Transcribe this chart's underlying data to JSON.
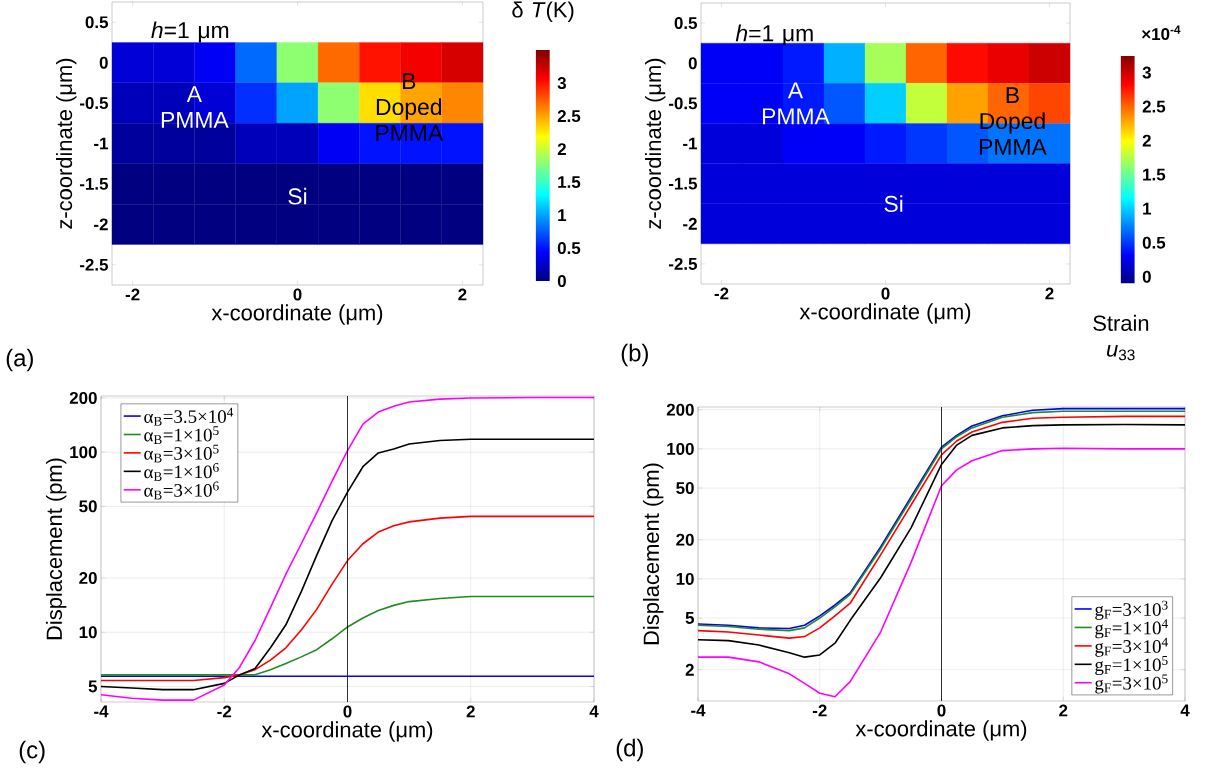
{
  "chart_data": [
    {
      "type": "heatmap",
      "xlabel": "x-coordinate (μm)",
      "ylabel": "z-coordinate (μm)",
      "clabel": "δ *T*(K)",
      "categories": [
        "-2",
        null,
        null,
        null,
        "0",
        null,
        null,
        null,
        "2"
      ],
      "y_categories": [
        "0.5",
        "0",
        "-0.5",
        "-1",
        "-1.5",
        "-2",
        "-2.5"
      ],
      "clim": [
        0,
        3.5
      ],
      "cticks": [
        0,
        0.5,
        1,
        1.5,
        2,
        2.5,
        3
      ],
      "cells": [
        [
          null,
          null,
          null,
          null,
          null,
          null,
          null,
          null,
          null
        ],
        [
          0.3,
          0.3,
          0.4,
          0.8,
          1.8,
          2.7,
          3.0,
          3.1,
          3.2
        ],
        [
          0.2,
          0.2,
          0.3,
          0.6,
          1.0,
          1.8,
          2.3,
          2.5,
          2.6
        ],
        [
          0.1,
          0.1,
          0.1,
          0.2,
          0.2,
          0.4,
          0.5,
          0.5,
          0.5
        ],
        [
          0,
          0,
          0,
          0,
          0,
          0,
          0,
          0,
          0
        ],
        [
          0,
          0,
          0,
          0,
          0,
          0,
          0,
          0,
          0
        ],
        [
          null,
          null,
          null,
          null,
          null,
          null,
          null,
          null,
          null
        ]
      ],
      "annotations": [
        "(a)",
        "*h*=1 μm",
        "A PMMA",
        "B Doped PMMA",
        "Si"
      ]
    },
    {
      "type": "heatmap",
      "xlabel": "x-coordinate (μm)",
      "ylabel": "z-coordinate (μm)",
      "clabel": "Strain *u*$_{33}$",
      "categories": [
        "-2",
        null,
        null,
        null,
        "0",
        null,
        null,
        null,
        "2"
      ],
      "y_categories": [
        "0.5",
        "0",
        "-0.5",
        "-1",
        "-1.5",
        "-2",
        "-2.5"
      ],
      "clim": [
        -0.1,
        3.25
      ],
      "cticks": [
        0,
        0.5,
        1,
        1.5,
        2,
        2.5,
        3
      ],
      "cells": [
        [
          null,
          null,
          null,
          null,
          null,
          null,
          null,
          null,
          null
        ],
        [
          0.3,
          0.3,
          0.4,
          0.9,
          1.7,
          2.5,
          2.8,
          2.9,
          3.0
        ],
        [
          0.3,
          0.3,
          0.4,
          0.6,
          1.0,
          1.8,
          2.3,
          2.5,
          2.6
        ],
        [
          0.2,
          0.2,
          0.3,
          0.3,
          0.4,
          0.5,
          0.6,
          0.7,
          0.7
        ],
        [
          0.2,
          0.2,
          0.2,
          0.2,
          0.2,
          0.2,
          0.2,
          0.2,
          0.2
        ],
        [
          0.2,
          0.2,
          0.2,
          0.2,
          0.2,
          0.2,
          0.2,
          0.2,
          0.2
        ],
        [
          null,
          null,
          null,
          null,
          null,
          null,
          null,
          null,
          null
        ]
      ],
      "annotations": [
        "(b)",
        "×10$^{-4}$",
        "*h*=1 μm",
        "A PMMA",
        "B Doped PMMA",
        "Si"
      ]
    },
    {
      "type": "line",
      "xlabel": "x-coordinate (μm)",
      "ylabel": "Displacement (pm)",
      "log": "y",
      "grid": true,
      "legend": "top left",
      "xlim": [
        -4,
        4
      ],
      "xticks": [
        -4,
        -2,
        0,
        2,
        4
      ],
      "ylim": [
        4.1,
        205
      ],
      "yticks": [
        5,
        10,
        20,
        50,
        100,
        200
      ],
      "x": [
        -4,
        -3.5,
        -3,
        -2.5,
        -2,
        -1.75,
        -1.5,
        -1.25,
        -1,
        -0.75,
        -0.5,
        -0.25,
        0,
        0.25,
        0.5,
        0.75,
        1,
        1.5,
        2,
        3,
        4
      ],
      "series": [
        {
          "name": "α$_{B}$=3.5×10$^{4}$",
          "color": "#0000ff",
          "values": [
            5.7,
            5.7,
            5.7,
            5.7,
            5.7,
            5.7,
            5.7,
            5.7,
            5.7,
            5.7,
            5.7,
            5.7,
            5.7,
            5.7,
            5.7,
            5.7,
            5.7,
            5.7,
            5.7,
            5.7,
            5.7
          ]
        },
        {
          "name": "α$_{B}$=1×10$^{5}$",
          "color": "#228b22",
          "values": [
            5.8,
            5.8,
            5.8,
            5.8,
            5.8,
            5.8,
            5.8,
            6.2,
            6.7,
            7.3,
            8.0,
            9.2,
            10.7,
            12.0,
            13.2,
            14.1,
            14.8,
            15.4,
            15.8,
            15.8,
            15.8
          ]
        },
        {
          "name": "α$_{B}$=3×10$^{5}$",
          "color": "#ff0000",
          "values": [
            5.4,
            5.4,
            5.4,
            5.4,
            5.6,
            5.8,
            6.2,
            7.0,
            8.2,
            10.3,
            13.4,
            18.5,
            25,
            31,
            36,
            39,
            41,
            43,
            44,
            44,
            44
          ]
        },
        {
          "name": "α$_{B}$=1×10$^{6}$",
          "color": "#000000",
          "values": [
            5.0,
            4.9,
            4.8,
            4.8,
            5.2,
            5.8,
            6.3,
            8.2,
            11.0,
            16.8,
            26.7,
            41.7,
            60,
            83,
            99,
            104,
            111,
            116,
            118,
            118,
            118
          ]
        },
        {
          "name": "α$_{B}$=3×10$^{6}$",
          "color": "#ff00ff",
          "values": [
            4.5,
            4.3,
            4.2,
            4.2,
            5.1,
            6.4,
            9.0,
            13.7,
            21,
            31,
            46,
            69,
            102,
            143,
            167,
            180,
            190,
            197,
            200,
            201,
            201
          ]
        }
      ],
      "ref_lines": [
        {
          "axis": "x",
          "value": 0,
          "color": "#000000"
        }
      ],
      "annotations": [
        "(c)"
      ]
    },
    {
      "type": "line",
      "xlabel": "x-coordinate (μm)",
      "ylabel": "Displacement (pm)",
      "log": "y",
      "grid": true,
      "legend": "bottom right",
      "xlim": [
        -4,
        4
      ],
      "xticks": [
        -4,
        -2,
        0,
        2,
        4
      ],
      "ylim": [
        1.15,
        210
      ],
      "yticks": [
        2,
        5,
        10,
        20,
        50,
        100,
        200
      ],
      "x": [
        -4,
        -3.5,
        -3,
        -2.5,
        -2.25,
        -2,
        -1.75,
        -1.5,
        -1,
        -0.5,
        0,
        0.25,
        0.5,
        1,
        1.5,
        2,
        3,
        4
      ],
      "series": [
        {
          "name": "g$_{F}$=3×10$^{3}$",
          "color": "#0000ff",
          "values": [
            4.5,
            4.4,
            4.2,
            4.15,
            4.4,
            5.2,
            6.3,
            7.8,
            17.6,
            42.7,
            103,
            127,
            150,
            180,
            198,
            204,
            204,
            204
          ]
        },
        {
          "name": "g$_{F}$=1×10$^{4}$",
          "color": "#228b22",
          "values": [
            4.4,
            4.3,
            4.1,
            4.0,
            4.2,
            5.0,
            6.1,
            7.6,
            17.0,
            41,
            100,
            124,
            145,
            175,
            190,
            195,
            195,
            195
          ]
        },
        {
          "name": "g$_{F}$=3×10$^{4}$",
          "color": "#ff0000",
          "values": [
            4.0,
            3.9,
            3.7,
            3.5,
            3.6,
            4.2,
            5.2,
            6.5,
            15.3,
            37,
            90,
            115,
            135,
            160,
            172,
            175,
            178,
            178
          ]
        },
        {
          "name": "g$_{F}$=1×10$^{5}$",
          "color": "#000000",
          "values": [
            3.4,
            3.35,
            3.1,
            2.7,
            2.5,
            2.6,
            3.2,
            4.8,
            10.2,
            24.7,
            76,
            107,
            127,
            145,
            151,
            153,
            154,
            153
          ]
        },
        {
          "name": "g$_{F}$=3×10$^{5}$",
          "color": "#ff00ff",
          "values": [
            2.5,
            2.5,
            2.3,
            1.86,
            1.57,
            1.32,
            1.24,
            1.62,
            3.9,
            13.4,
            52,
            69,
            81,
            97,
            100,
            101,
            100,
            100
          ]
        }
      ],
      "ref_lines": [
        {
          "axis": "x",
          "value": 0,
          "color": "#000000"
        }
      ],
      "annotations": [
        "(d)"
      ]
    }
  ]
}
